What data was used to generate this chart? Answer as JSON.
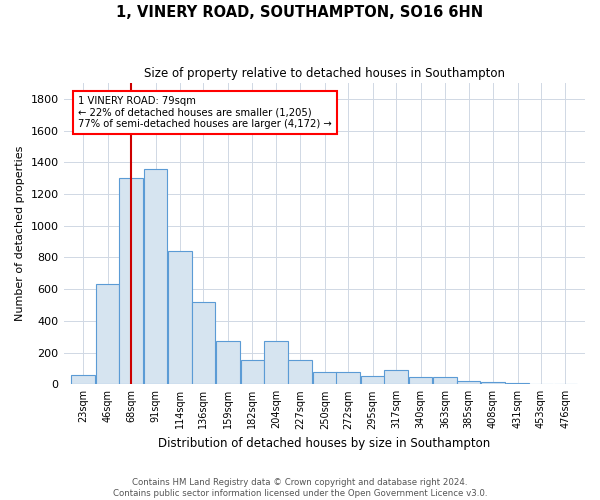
{
  "title": "1, VINERY ROAD, SOUTHAMPTON, SO16 6HN",
  "subtitle": "Size of property relative to detached houses in Southampton",
  "xlabel": "Distribution of detached houses by size in Southampton",
  "ylabel": "Number of detached properties",
  "footnote1": "Contains HM Land Registry data © Crown copyright and database right 2024.",
  "footnote2": "Contains public sector information licensed under the Open Government Licence v3.0.",
  "annotation_line0": "1 VINERY ROAD: 79sqm",
  "annotation_line1": "← 22% of detached houses are smaller (1,205)",
  "annotation_line2": "77% of semi-detached houses are larger (4,172) →",
  "bar_color": "#d6e4f0",
  "bar_edge_color": "#5b9bd5",
  "grid_color": "#d0d8e4",
  "vline_color": "#cc0000",
  "vline_x": 79,
  "categories": [
    "23sqm",
    "46sqm",
    "68sqm",
    "91sqm",
    "114sqm",
    "136sqm",
    "159sqm",
    "182sqm",
    "204sqm",
    "227sqm",
    "250sqm",
    "272sqm",
    "295sqm",
    "317sqm",
    "340sqm",
    "363sqm",
    "385sqm",
    "408sqm",
    "431sqm",
    "453sqm",
    "476sqm"
  ],
  "bin_starts": [
    23,
    46,
    68,
    91,
    114,
    136,
    159,
    182,
    204,
    227,
    250,
    272,
    295,
    317,
    340,
    363,
    385,
    408,
    431,
    453,
    476
  ],
  "bin_width": 23,
  "values": [
    60,
    635,
    1300,
    1360,
    840,
    520,
    270,
    155,
    270,
    155,
    80,
    80,
    50,
    90,
    45,
    45,
    20,
    15,
    8,
    5,
    5
  ],
  "ylim": [
    0,
    1900
  ],
  "yticks": [
    0,
    200,
    400,
    600,
    800,
    1000,
    1200,
    1400,
    1600,
    1800
  ],
  "figsize": [
    6.0,
    5.0
  ],
  "dpi": 100
}
